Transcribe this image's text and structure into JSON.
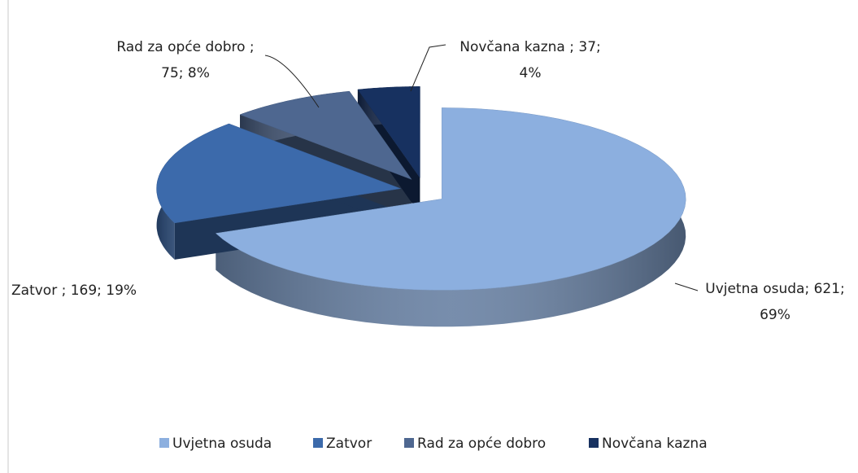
{
  "chart_data": {
    "type": "pie3d",
    "categories": [
      "Uvjetna osuda",
      "Zatvor",
      "Rad za opće dobro",
      "Novčana kazna"
    ],
    "values": [
      621,
      169,
      75,
      37
    ],
    "value_labels": [
      [
        "Uvjetna osuda; 621;",
        "69%"
      ],
      [
        "Zatvor ; 169; 19%"
      ],
      [
        "Rad za opće dobro ;",
        "75; 8%"
      ],
      [
        "Novčana kazna ; 37;",
        "4%"
      ]
    ],
    "colors": [
      "#8cafdf",
      "#3c6aab",
      "#4e6790",
      "#173160"
    ],
    "legend": "bottom"
  }
}
